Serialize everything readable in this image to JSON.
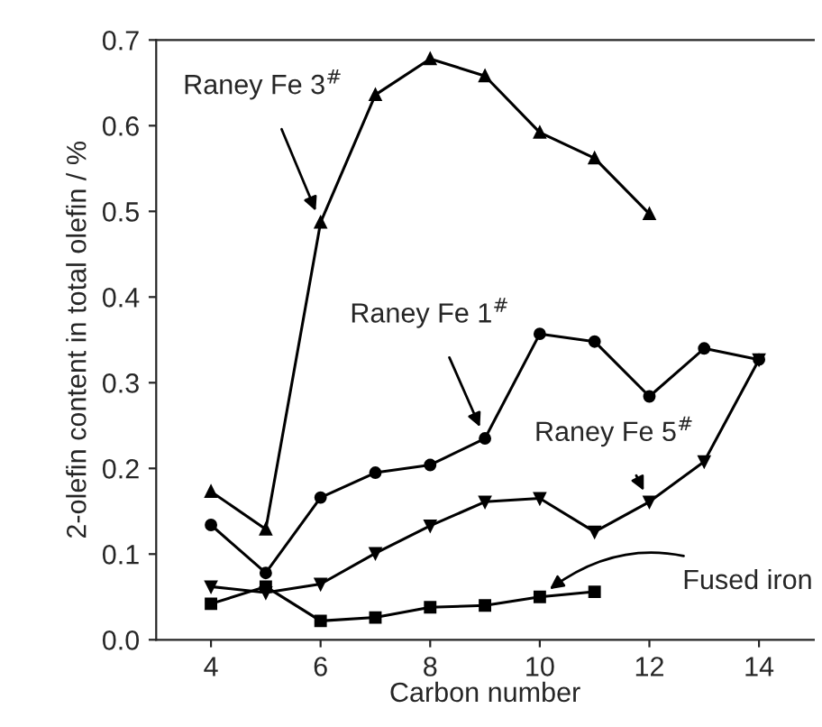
{
  "chart_data": {
    "type": "line",
    "xlabel": "Carbon number",
    "ylabel": "2-olefin content in total olefin / %",
    "x": [
      4,
      5,
      6,
      7,
      8,
      9,
      10,
      11,
      12,
      13,
      14
    ],
    "series": [
      {
        "color": "#000000",
        "marker": "triangle",
        "x": [
          4,
          5,
          6,
          7,
          8,
          9,
          10,
          11,
          12
        ],
        "values": [
          0.173,
          0.129,
          0.487,
          0.636,
          0.678,
          0.658,
          0.592,
          0.562,
          0.497
        ]
      },
      {
        "color": "#000000",
        "marker": "circle",
        "values": [
          0.134,
          0.078,
          0.166,
          0.195,
          0.204,
          0.235,
          0.357,
          0.348,
          0.284,
          0.34,
          0.327
        ]
      },
      {
        "color": "#000000",
        "marker": "triangle_down",
        "values": [
          0.062,
          0.055,
          0.065,
          0.101,
          0.133,
          0.161,
          0.165,
          0.126,
          0.161,
          0.208,
          0.327
        ]
      },
      {
        "color": "#000000",
        "marker": "square",
        "x": [
          4,
          5,
          6,
          7,
          8,
          9,
          10,
          11
        ],
        "values": [
          0.042,
          0.062,
          0.022,
          0.026,
          0.038,
          0.04,
          0.05,
          0.056
        ]
      }
    ],
    "annotations": [
      {
        "text": "Raney Fe 3$^{#}$",
        "x": 6,
        "y": 0.487
      },
      {
        "text": "Raney Fe 1$^{#}$",
        "x": 9,
        "y": 0.235
      },
      {
        "text": "Raney Fe 5$^{#}$",
        "x": 12,
        "y": 0.161
      },
      {
        "text": "Fused iron",
        "x": 10,
        "y": 0.05
      }
    ],
    "xlim": [
      3,
      15
    ],
    "xticks": [
      4,
      6,
      8,
      10,
      12,
      14
    ],
    "ylim": [
      0,
      0.7
    ],
    "yticks": [
      {
        "value": 0,
        "label": "0.0"
      },
      0.1,
      0.2,
      0.3,
      0.4,
      0.5,
      0.6,
      0.7
    ],
    "grid": false,
    "legend": false,
    "line_style": "solid"
  }
}
